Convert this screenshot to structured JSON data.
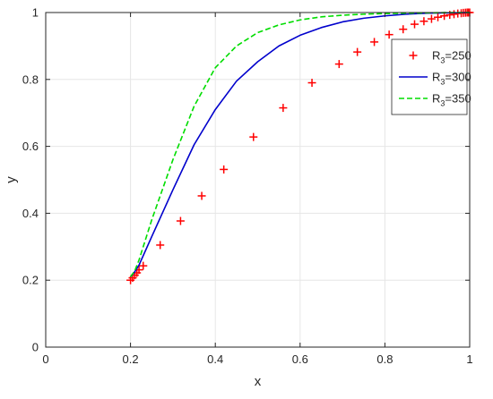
{
  "chart_data": {
    "type": "line",
    "xlabel": "x",
    "ylabel": "y",
    "xlim": [
      0,
      1
    ],
    "ylim": [
      0,
      1
    ],
    "xticks": [
      "0",
      "0.2",
      "0.4",
      "0.6",
      "0.8",
      "1"
    ],
    "yticks": [
      "0",
      "0.2",
      "0.4",
      "0.6",
      "0.8",
      "1"
    ],
    "grid": true,
    "legend_position": "top-right",
    "series": [
      {
        "name_base": "R",
        "name_sub": "3",
        "name_suffix": "=250",
        "style": "markers-plus",
        "color": "#ff0000",
        "x": [
          0.2,
          0.205,
          0.21,
          0.215,
          0.22,
          0.23,
          0.27,
          0.318,
          0.368,
          0.42,
          0.49,
          0.56,
          0.628,
          0.692,
          0.735,
          0.775,
          0.81,
          0.843,
          0.87,
          0.892,
          0.91,
          0.925,
          0.94,
          0.953,
          0.963,
          0.972,
          0.98,
          0.985,
          0.99,
          0.994,
          0.997,
          1.0
        ],
        "y": [
          0.2,
          0.207,
          0.215,
          0.222,
          0.231,
          0.243,
          0.305,
          0.377,
          0.452,
          0.531,
          0.628,
          0.715,
          0.79,
          0.846,
          0.882,
          0.912,
          0.934,
          0.95,
          0.965,
          0.974,
          0.981,
          0.986,
          0.99,
          0.993,
          0.995,
          0.997,
          0.998,
          0.999,
          0.9995,
          1.0,
          1.0,
          1.0
        ]
      },
      {
        "name_base": "R",
        "name_sub": "3",
        "name_suffix": "=300",
        "style": "solid",
        "color": "#0000cc",
        "x": [
          0.2,
          0.21,
          0.22,
          0.25,
          0.3,
          0.35,
          0.4,
          0.45,
          0.5,
          0.55,
          0.6,
          0.65,
          0.7,
          0.75,
          0.8,
          0.85,
          0.9,
          0.95,
          1.0
        ],
        "y": [
          0.21,
          0.225,
          0.245,
          0.33,
          0.47,
          0.605,
          0.71,
          0.795,
          0.853,
          0.9,
          0.932,
          0.955,
          0.972,
          0.983,
          0.99,
          0.995,
          0.998,
          0.999,
          1.0
        ]
      },
      {
        "name_base": "R",
        "name_sub": "3",
        "name_suffix": "=350",
        "style": "dashed",
        "color": "#00dd00",
        "x": [
          0.2,
          0.21,
          0.22,
          0.25,
          0.3,
          0.35,
          0.4,
          0.45,
          0.5,
          0.55,
          0.6,
          0.65,
          0.7,
          0.75,
          0.8,
          0.85,
          0.9,
          0.95,
          1.0
        ],
        "y": [
          0.21,
          0.228,
          0.26,
          0.38,
          0.56,
          0.72,
          0.835,
          0.9,
          0.94,
          0.963,
          0.978,
          0.987,
          0.992,
          0.995,
          0.997,
          0.998,
          0.999,
          1.0,
          1.0
        ]
      }
    ]
  }
}
